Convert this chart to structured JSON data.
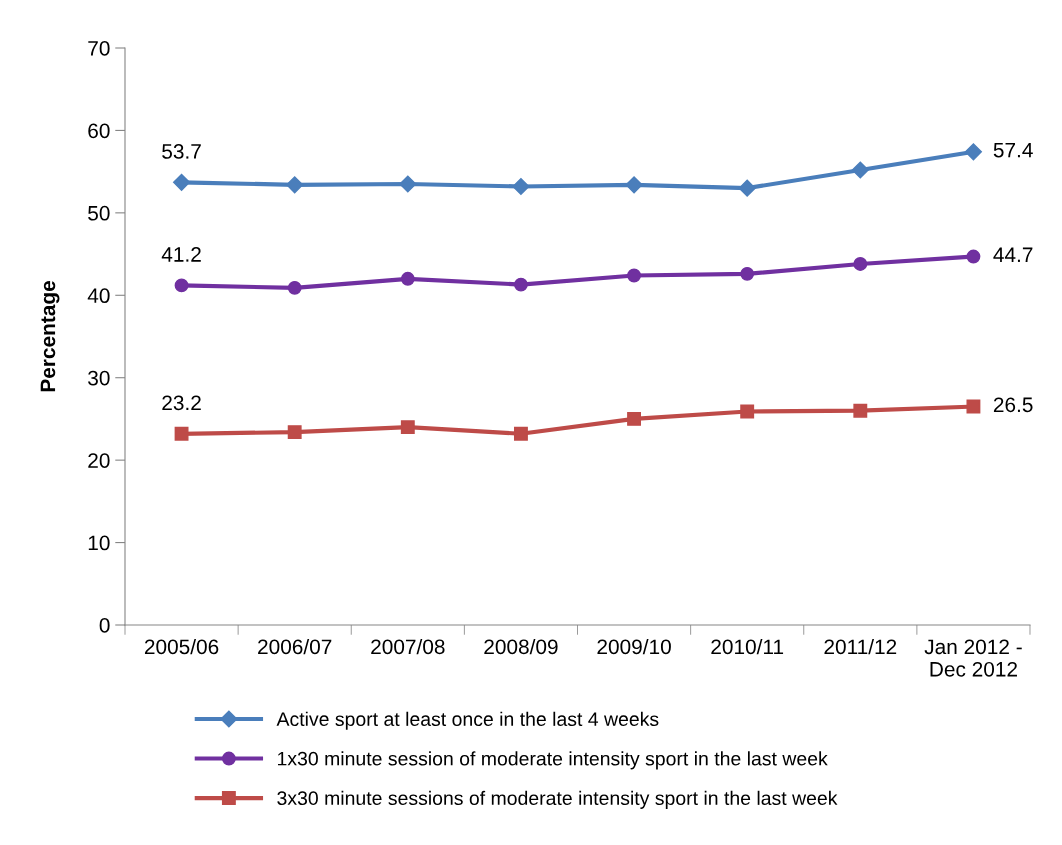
{
  "chart_data": {
    "type": "line",
    "ylabel": "Percentage",
    "categories": [
      "2005/06",
      "2006/07",
      "2007/08",
      "2008/09",
      "2009/10",
      "2010/11",
      "2011/12",
      "Jan 2012 -\nDec 2012"
    ],
    "series": [
      {
        "name": "Active sport at least once in the last 4 weeks",
        "color": "#4a7ebb",
        "marker": "diamond",
        "values": [
          53.7,
          53.4,
          53.5,
          53.2,
          53.4,
          53.0,
          55.2,
          57.4
        ],
        "value_labels": [
          "53.7",
          null,
          null,
          null,
          null,
          null,
          null,
          "57.4"
        ]
      },
      {
        "name": "1x30 minute session of moderate intensity sport in the last week",
        "color": "#7030a0",
        "marker": "circle",
        "values": [
          41.2,
          40.9,
          42.0,
          41.3,
          42.4,
          42.6,
          43.8,
          44.7
        ],
        "value_labels": [
          "41.2",
          null,
          null,
          null,
          null,
          null,
          null,
          "44.7"
        ]
      },
      {
        "name": "3x30 minute sessions of moderate intensity sport in the last week",
        "color": "#be4b48",
        "marker": "square",
        "values": [
          23.2,
          23.4,
          24.0,
          23.2,
          25.0,
          25.9,
          26.0,
          26.5
        ],
        "value_labels": [
          "23.2",
          null,
          null,
          null,
          null,
          null,
          null,
          "26.5"
        ]
      }
    ],
    "ylim": [
      0,
      70
    ],
    "yticks": [
      0,
      10,
      20,
      30,
      40,
      50,
      60,
      70
    ],
    "grid": false,
    "legend": "bottom"
  }
}
